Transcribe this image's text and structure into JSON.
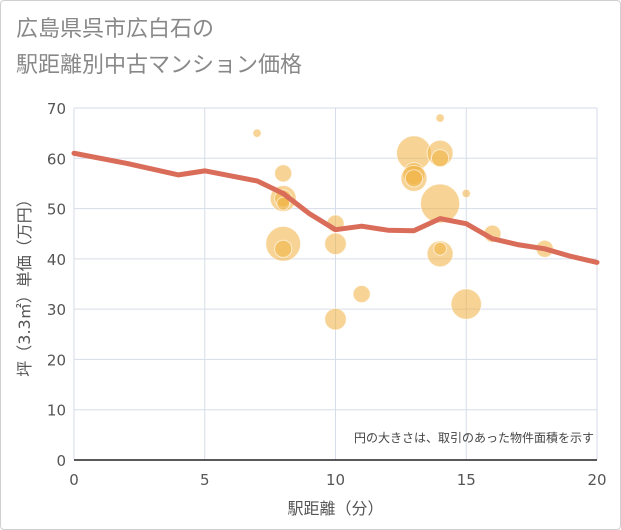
{
  "title": {
    "line1": "広島県呉市広白石の",
    "line2": "駅距離別中古マンション価格"
  },
  "chart_data": {
    "type": "scatter",
    "xlabel": "駅距離（分）",
    "ylabel": "坪（3.3㎡）単価（万円）",
    "xlim": [
      0,
      20
    ],
    "ylim": [
      0,
      70
    ],
    "x_ticks": [
      0,
      5,
      10,
      15,
      20
    ],
    "y_ticks": [
      0,
      10,
      20,
      30,
      40,
      50,
      60,
      70
    ],
    "note": "円の大きさは、取引のあった物件面積を示す",
    "bubble_color": "#f0b040",
    "line_color": "#d96d5a",
    "bubbles": [
      {
        "x": 7,
        "y": 65,
        "size": 1
      },
      {
        "x": 8,
        "y": 57,
        "size": 3
      },
      {
        "x": 8,
        "y": 52,
        "size": 5
      },
      {
        "x": 8,
        "y": 52,
        "size": 3
      },
      {
        "x": 8,
        "y": 51,
        "size": 2
      },
      {
        "x": 8,
        "y": 43,
        "size": 7
      },
      {
        "x": 8,
        "y": 42,
        "size": 3
      },
      {
        "x": 10,
        "y": 47,
        "size": 3
      },
      {
        "x": 10,
        "y": 43,
        "size": 4
      },
      {
        "x": 10,
        "y": 28,
        "size": 4
      },
      {
        "x": 11,
        "y": 33,
        "size": 3
      },
      {
        "x": 13,
        "y": 61,
        "size": 7
      },
      {
        "x": 13,
        "y": 57,
        "size": 4
      },
      {
        "x": 13,
        "y": 56,
        "size": 5
      },
      {
        "x": 13,
        "y": 56,
        "size": 3
      },
      {
        "x": 14,
        "y": 68,
        "size": 1
      },
      {
        "x": 14,
        "y": 61,
        "size": 5
      },
      {
        "x": 14,
        "y": 60,
        "size": 3
      },
      {
        "x": 14,
        "y": 51,
        "size": 8
      },
      {
        "x": 14,
        "y": 41,
        "size": 5
      },
      {
        "x": 14,
        "y": 42,
        "size": 2
      },
      {
        "x": 15,
        "y": 53,
        "size": 1
      },
      {
        "x": 15,
        "y": 31,
        "size": 6
      },
      {
        "x": 16,
        "y": 45,
        "size": 3
      },
      {
        "x": 18,
        "y": 42,
        "size": 3
      }
    ],
    "trend": {
      "x": [
        0,
        2,
        4,
        5,
        7,
        8,
        9,
        10,
        11,
        12,
        13,
        14,
        15,
        16,
        17,
        18,
        19,
        20
      ],
      "y": [
        61,
        59,
        56.7,
        57.5,
        55.5,
        53,
        49,
        45.8,
        46.5,
        45.7,
        45.6,
        48,
        47,
        44,
        42.8,
        42,
        40.5,
        39.3
      ]
    }
  }
}
